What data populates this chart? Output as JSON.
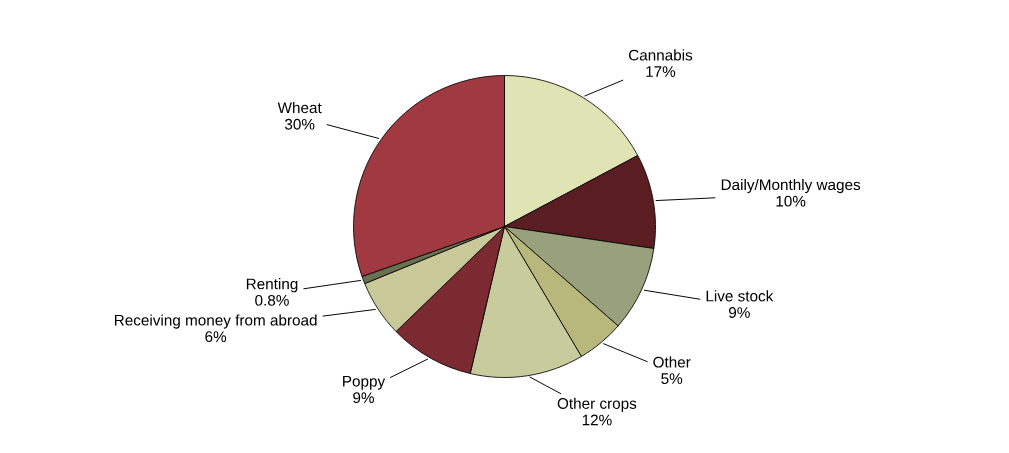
{
  "chart_data": {
    "type": "pie",
    "categories": [
      "Cannabis",
      "Daily/Monthly wages",
      "Live stock",
      "Other",
      "Other crops",
      "Poppy",
      "Receiving money from abroad",
      "Renting",
      "Wheat"
    ],
    "values": [
      17,
      10,
      9,
      5,
      12,
      9,
      6,
      0.8,
      30
    ],
    "value_labels": [
      "17%",
      "10%",
      "9%",
      "5%",
      "12%",
      "9%",
      "6%",
      "0.8%",
      "30%"
    ],
    "colors": [
      "#e0e4b4",
      "#5a1e22",
      "#98a07c",
      "#b8b87c",
      "#c8cc9c",
      "#7a2a30",
      "#c8c898",
      "#6a7050",
      "#a03a40"
    ],
    "legend": false
  }
}
